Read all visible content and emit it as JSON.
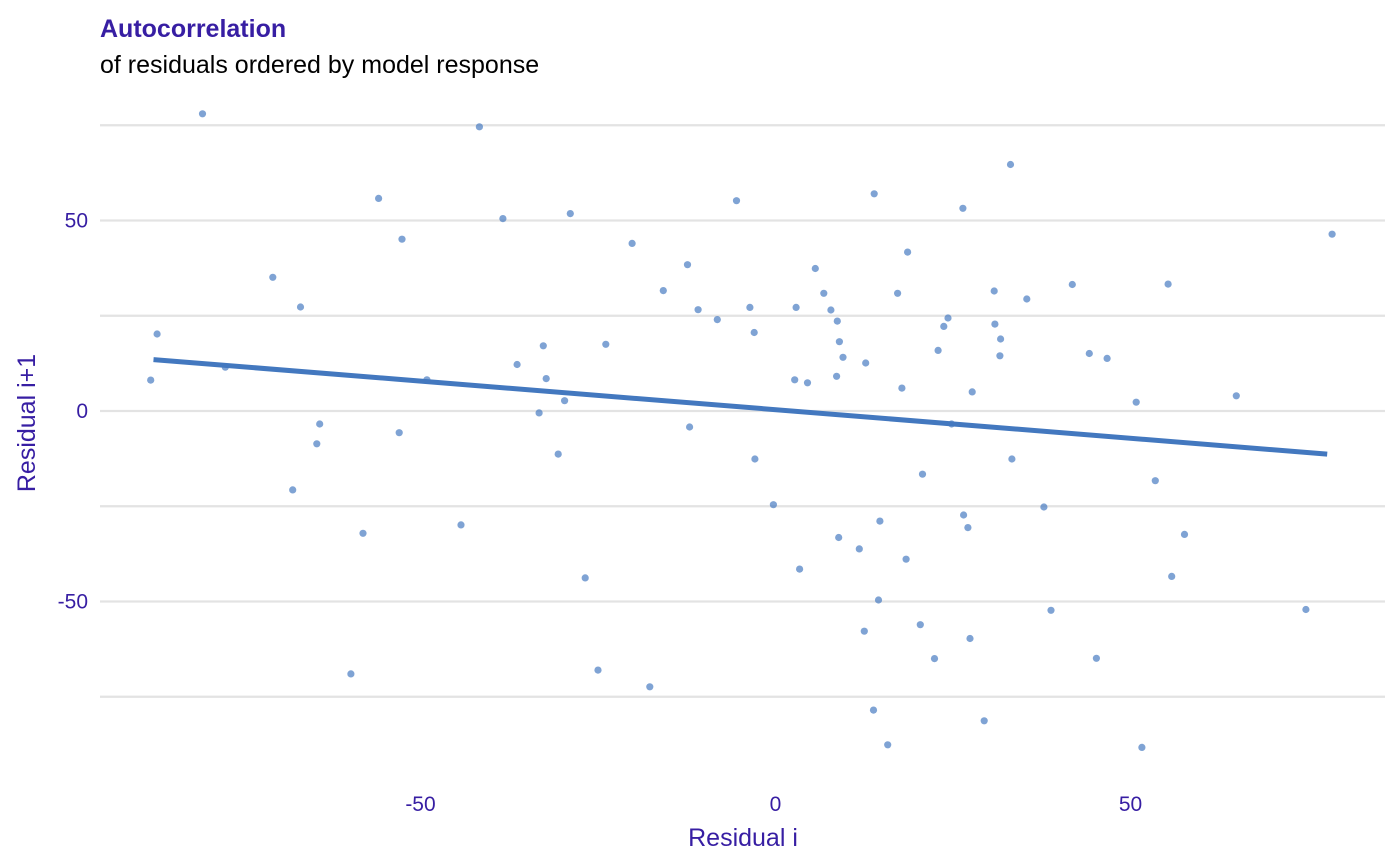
{
  "chart_data": {
    "type": "scatter",
    "title": "Autocorrelation",
    "subtitle": "of residuals ordered by model response",
    "xlabel": "Residual i",
    "ylabel": "Residual i+1",
    "xlim": [
      -95,
      86
    ],
    "ylim": [
      -99,
      82
    ],
    "x_ticks": [
      -50,
      0,
      50
    ],
    "y_ticks": [
      -50,
      0,
      50
    ],
    "x_tick_labels": [
      "-50",
      "0",
      "50"
    ],
    "y_tick_labels": [
      "-50",
      "0",
      "50"
    ],
    "y_gridlines": [
      -75,
      -50,
      -25,
      0,
      25,
      50,
      75
    ],
    "x_grid": false,
    "legend": "none",
    "colors": {
      "point": "#4378bf",
      "trend": "#4378bf",
      "title": "#371ea3",
      "axis_text": "#371ea3",
      "grid": "#e3e3e3"
    },
    "trend_line": {
      "x": [
        -87.6,
        77.7
      ],
      "y": [
        13.5,
        -11.3
      ]
    },
    "points": [
      [
        -80.7,
        78.0
      ],
      [
        -41.7,
        74.6
      ],
      [
        33.1,
        64.7
      ],
      [
        -55.9,
        55.8
      ],
      [
        13.9,
        57.0
      ],
      [
        26.4,
        53.2
      ],
      [
        -5.5,
        55.2
      ],
      [
        -28.9,
        51.8
      ],
      [
        -38.4,
        50.5
      ],
      [
        -52.6,
        45.1
      ],
      [
        -20.2,
        44.0
      ],
      [
        78.4,
        46.4
      ],
      [
        18.6,
        41.7
      ],
      [
        -70.8,
        35.1
      ],
      [
        -12.4,
        38.4
      ],
      [
        5.6,
        37.4
      ],
      [
        -15.8,
        31.6
      ],
      [
        6.8,
        30.9
      ],
      [
        17.2,
        30.9
      ],
      [
        30.8,
        31.5
      ],
      [
        41.8,
        33.2
      ],
      [
        55.3,
        33.3
      ],
      [
        35.4,
        29.4
      ],
      [
        -66.9,
        27.3
      ],
      [
        -10.9,
        26.6
      ],
      [
        -3.6,
        27.2
      ],
      [
        2.9,
        27.2
      ],
      [
        7.8,
        26.5
      ],
      [
        -8.2,
        24.0
      ],
      [
        8.7,
        23.6
      ],
      [
        24.3,
        24.4
      ],
      [
        23.7,
        22.2
      ],
      [
        30.9,
        22.8
      ],
      [
        -87.1,
        20.2
      ],
      [
        -3.0,
        20.6
      ],
      [
        31.7,
        18.9
      ],
      [
        -32.7,
        17.1
      ],
      [
        -23.9,
        17.5
      ],
      [
        9.0,
        18.2
      ],
      [
        22.9,
        15.9
      ],
      [
        -36.4,
        12.2
      ],
      [
        9.5,
        14.1
      ],
      [
        12.7,
        12.6
      ],
      [
        31.6,
        14.5
      ],
      [
        44.2,
        15.1
      ],
      [
        46.7,
        13.8
      ],
      [
        -77.5,
        11.5
      ],
      [
        -32.3,
        8.5
      ],
      [
        -49.1,
        8.2
      ],
      [
        -88.0,
        8.1
      ],
      [
        2.7,
        8.2
      ],
      [
        4.5,
        7.4
      ],
      [
        8.6,
        9.1
      ],
      [
        17.8,
        6.0
      ],
      [
        27.7,
        5.0
      ],
      [
        -29.7,
        2.7
      ],
      [
        50.8,
        2.3
      ],
      [
        64.9,
        4.0
      ],
      [
        -33.3,
        -0.5
      ],
      [
        24.8,
        -3.4
      ],
      [
        -64.2,
        -3.4
      ],
      [
        -12.1,
        -4.2
      ],
      [
        -53.0,
        -5.7
      ],
      [
        -64.6,
        -8.6
      ],
      [
        -30.6,
        -11.3
      ],
      [
        -2.9,
        -12.6
      ],
      [
        33.3,
        -12.6
      ],
      [
        20.7,
        -16.6
      ],
      [
        53.5,
        -18.3
      ],
      [
        -68.0,
        -20.7
      ],
      [
        -0.3,
        -24.6
      ],
      [
        37.8,
        -25.2
      ],
      [
        26.5,
        -27.3
      ],
      [
        14.7,
        -28.9
      ],
      [
        -44.3,
        -29.9
      ],
      [
        27.1,
        -30.6
      ],
      [
        -58.1,
        -32.1
      ],
      [
        8.9,
        -33.2
      ],
      [
        57.6,
        -32.4
      ],
      [
        11.8,
        -36.2
      ],
      [
        18.4,
        -38.9
      ],
      [
        3.4,
        -41.5
      ],
      [
        -26.8,
        -43.8
      ],
      [
        55.8,
        -43.4
      ],
      [
        14.5,
        -49.6
      ],
      [
        38.8,
        -52.3
      ],
      [
        74.7,
        -52.1
      ],
      [
        20.4,
        -56.1
      ],
      [
        12.5,
        -57.8
      ],
      [
        27.4,
        -59.7
      ],
      [
        22.4,
        -65.0
      ],
      [
        45.2,
        -64.9
      ],
      [
        -25.0,
        -68.0
      ],
      [
        -59.8,
        -69.0
      ],
      [
        -17.7,
        -72.4
      ],
      [
        13.8,
        -78.5
      ],
      [
        29.4,
        -81.3
      ],
      [
        15.8,
        -87.6
      ],
      [
        51.6,
        -88.3
      ]
    ]
  }
}
